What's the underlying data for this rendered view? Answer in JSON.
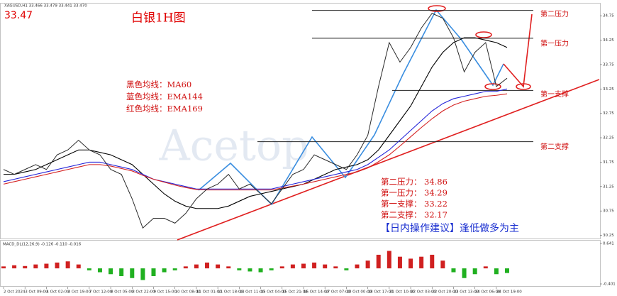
{
  "chart_data": {
    "type": "line",
    "header": "XAGUSD,H1  33.466 33.479 33.441 33.470",
    "price_label": "33.47",
    "title": "白银1H图",
    "watermark": "Acetop",
    "categories": [
      "2 Oct 2024",
      null,
      "3 Oct 09:00",
      null,
      "4 Oct 02:00",
      null,
      "4 Oct 19:00",
      null,
      "7 Oct 12:00",
      null,
      "8 Oct 05:00",
      null,
      "8 Oct 22:00",
      null,
      "9 Oct 15:00",
      null,
      "10 Oct 08:00",
      null,
      "11 Oct 01:00",
      null,
      "11 Oct 18:00",
      null,
      "14 Oct 11:00",
      null,
      "15 Oct 04:00",
      null,
      "15 Oct 21:00",
      null,
      "16 Oct 14:00",
      null,
      "17 Oct 07:00",
      null,
      "18 Oct 00:00",
      null,
      "18 Oct 17:00",
      null,
      "21 Oct 10:00",
      null,
      "22 Oct 03:00",
      null,
      "22 Oct 20:00",
      null,
      "23 Oct 13:00",
      null,
      "24 Oct 06:00",
      null,
      "24 Oct 19:00",
      null
    ],
    "price": [
      31.6,
      31.5,
      31.6,
      31.7,
      31.6,
      31.9,
      32.0,
      32.2,
      32.0,
      31.9,
      31.6,
      31.5,
      31.0,
      30.4,
      30.6,
      30.6,
      30.5,
      30.7,
      31.0,
      31.2,
      31.3,
      31.5,
      31.2,
      31.3,
      31.1,
      30.9,
      31.2,
      31.5,
      31.6,
      31.9,
      31.8,
      31.7,
      31.6,
      31.9,
      32.3,
      33.3,
      34.2,
      33.8,
      34.1,
      34.5,
      34.8,
      34.7,
      34.3,
      33.6,
      34.0,
      34.2,
      33.3,
      33.47
    ],
    "price_color": "#2a2a2a",
    "series": [
      {
        "name": "黑色均线：MA60",
        "color": "#000000",
        "values": [
          31.5,
          31.5,
          31.55,
          31.6,
          31.7,
          31.8,
          31.9,
          32.0,
          32.0,
          31.95,
          31.9,
          31.8,
          31.7,
          31.5,
          31.3,
          31.1,
          30.95,
          30.85,
          30.8,
          30.8,
          30.8,
          30.85,
          30.95,
          31.05,
          31.1,
          31.15,
          31.2,
          31.25,
          31.3,
          31.4,
          31.5,
          31.6,
          31.65,
          31.7,
          31.8,
          32.0,
          32.3,
          32.6,
          32.9,
          33.3,
          33.7,
          34.0,
          34.2,
          34.3,
          34.3,
          34.25,
          34.2,
          34.1
        ]
      },
      {
        "name": "蓝色均线：EMA144",
        "color": "#2323d8",
        "values": [
          31.35,
          31.4,
          31.45,
          31.5,
          31.55,
          31.6,
          31.65,
          31.7,
          31.75,
          31.75,
          31.7,
          31.65,
          31.6,
          31.5,
          31.4,
          31.35,
          31.3,
          31.25,
          31.2,
          31.2,
          31.2,
          31.2,
          31.2,
          31.2,
          31.2,
          31.2,
          31.25,
          31.3,
          31.35,
          31.4,
          31.45,
          31.5,
          31.55,
          31.6,
          31.7,
          31.85,
          32.0,
          32.2,
          32.4,
          32.6,
          32.8,
          32.95,
          33.05,
          33.1,
          33.15,
          33.2,
          33.2,
          33.25
        ]
      },
      {
        "name": "红色均线：EMA169",
        "color": "#d42020",
        "values": [
          31.3,
          31.35,
          31.4,
          31.45,
          31.5,
          31.55,
          31.6,
          31.65,
          31.7,
          31.7,
          31.67,
          31.62,
          31.57,
          31.48,
          31.4,
          31.34,
          31.28,
          31.23,
          31.19,
          31.18,
          31.18,
          31.18,
          31.18,
          31.18,
          31.18,
          31.18,
          31.22,
          31.26,
          31.3,
          31.35,
          31.4,
          31.45,
          31.5,
          31.55,
          31.63,
          31.76,
          31.9,
          32.08,
          32.27,
          32.46,
          32.64,
          32.8,
          32.92,
          33.0,
          33.05,
          33.1,
          33.12,
          33.15
        ]
      }
    ],
    "ylim": [
      30.2,
      35.0
    ],
    "yticks": [
      34.75,
      34.25,
      33.75,
      33.25,
      32.75,
      32.25,
      31.75,
      31.25,
      30.75,
      30.25
    ],
    "levels": [
      {
        "label": "第二压力：",
        "tag": "第二压力",
        "value": 34.86
      },
      {
        "label": "第一压力：",
        "tag": "第一压力",
        "value": 34.29
      },
      {
        "label": "第一支撑：",
        "tag": "第一支撑",
        "value": 33.22
      },
      {
        "label": "第二支撑：",
        "tag": "第二支撑",
        "value": 32.17
      }
    ],
    "advice": "【日内操作建议】逢低做多为主",
    "macd": {
      "label": "MACD_DL(12,26,9) -0.126 -0.110 -0.016",
      "values": [
        0.05,
        0.08,
        0.06,
        0.1,
        0.12,
        0.15,
        0.18,
        0.1,
        -0.05,
        -0.1,
        -0.15,
        -0.2,
        -0.25,
        -0.3,
        -0.2,
        -0.1,
        -0.05,
        0.05,
        0.1,
        0.15,
        0.1,
        0.05,
        -0.05,
        -0.08,
        -0.1,
        -0.05,
        0.05,
        0.1,
        0.12,
        0.15,
        0.1,
        0.05,
        -0.05,
        0.1,
        0.2,
        0.35,
        0.45,
        0.3,
        0.25,
        0.3,
        0.35,
        0.2,
        -0.1,
        -0.25,
        -0.15,
        0.05,
        -0.15,
        -0.12
      ],
      "ylim": [
        -0.401,
        0.641
      ],
      "yticks": [
        0.641,
        -0.401
      ]
    }
  }
}
